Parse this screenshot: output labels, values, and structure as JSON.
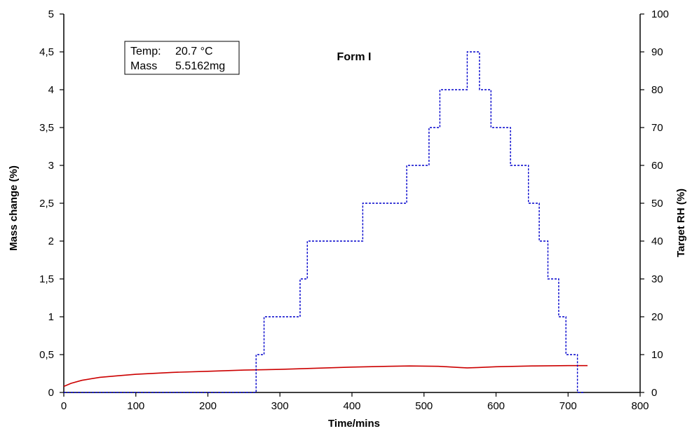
{
  "chart_data": {
    "type": "line",
    "title": "Form I",
    "xlabel": "Time/mins",
    "ylabel_left": "Mass change (%)",
    "ylabel_right": "Target RH (%)",
    "xlim": [
      0,
      800
    ],
    "ylim_left": [
      0,
      5
    ],
    "ylim_right": [
      0,
      100
    ],
    "x_ticks": [
      "0",
      "100",
      "200",
      "300",
      "400",
      "500",
      "600",
      "700",
      "800"
    ],
    "y_left_ticks": [
      "0",
      "0,5",
      "1",
      "1,5",
      "2",
      "2,5",
      "3",
      "3,5",
      "4",
      "4,5",
      "5"
    ],
    "y_right_ticks": [
      "0",
      "10",
      "20",
      "30",
      "40",
      "50",
      "60",
      "70",
      "80",
      "90",
      "100"
    ],
    "grid": false,
    "info_box": {
      "temp_label": "Temp:",
      "temp_value": "20.7 °C",
      "mass_label": "Mass",
      "mass_value": "5.5162mg"
    },
    "series": [
      {
        "axis": "left",
        "color": "#cc0000",
        "style": "solid",
        "x": [
          0,
          10,
          25,
          50,
          75,
          100,
          150,
          200,
          250,
          300,
          350,
          400,
          450,
          480,
          520,
          550,
          560,
          575,
          600,
          650,
          700,
          727
        ],
        "y": [
          0.08,
          0.12,
          0.16,
          0.2,
          0.22,
          0.24,
          0.265,
          0.28,
          0.295,
          0.305,
          0.32,
          0.335,
          0.345,
          0.35,
          0.345,
          0.33,
          0.325,
          0.33,
          0.34,
          0.35,
          0.355,
          0.355
        ]
      },
      {
        "axis": "right",
        "color": "#0000cc",
        "style": "dashed",
        "x": [
          0,
          267,
          267,
          278,
          278,
          328,
          328,
          338,
          338,
          415,
          415,
          476,
          476,
          507,
          507,
          522,
          522,
          560,
          560,
          577,
          577,
          593,
          593,
          620,
          620,
          645,
          645,
          660,
          660,
          672,
          672,
          687,
          687,
          697,
          697,
          713,
          713,
          723
        ],
        "y": [
          0,
          0,
          10,
          10,
          20,
          20,
          30,
          30,
          40,
          40,
          50,
          50,
          60,
          60,
          70,
          70,
          80,
          80,
          90,
          90,
          80,
          80,
          70,
          70,
          60,
          60,
          50,
          50,
          40,
          40,
          30,
          30,
          20,
          20,
          10,
          10,
          0,
          0
        ]
      }
    ]
  }
}
